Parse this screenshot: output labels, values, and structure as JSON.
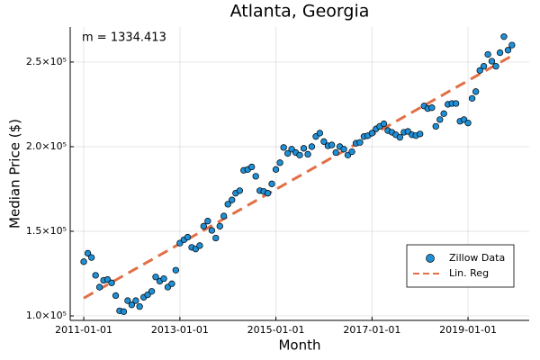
{
  "chart_data": {
    "type": "scatter",
    "title": "Atlanta, Georgia",
    "xlabel": "Month",
    "ylabel": "Median Price ($)",
    "annotation": "m = 1334.413",
    "x": [
      "2011-01-01",
      "2011-02-01",
      "2011-03-01",
      "2011-04-01",
      "2011-05-01",
      "2011-06-01",
      "2011-07-01",
      "2011-08-01",
      "2011-09-01",
      "2011-10-01",
      "2011-11-01",
      "2011-12-01",
      "2012-01-01",
      "2012-02-01",
      "2012-03-01",
      "2012-04-01",
      "2012-05-01",
      "2012-06-01",
      "2012-07-01",
      "2012-08-01",
      "2012-09-01",
      "2012-10-01",
      "2012-11-01",
      "2012-12-01",
      "2013-01-01",
      "2013-02-01",
      "2013-03-01",
      "2013-04-01",
      "2013-05-01",
      "2013-06-01",
      "2013-07-01",
      "2013-08-01",
      "2013-09-01",
      "2013-10-01",
      "2013-11-01",
      "2013-12-01",
      "2014-01-01",
      "2014-02-01",
      "2014-03-01",
      "2014-04-01",
      "2014-05-01",
      "2014-06-01",
      "2014-07-01",
      "2014-08-01",
      "2014-09-01",
      "2014-10-01",
      "2014-11-01",
      "2014-12-01",
      "2015-01-01",
      "2015-02-01",
      "2015-03-01",
      "2015-04-01",
      "2015-05-01",
      "2015-06-01",
      "2015-07-01",
      "2015-08-01",
      "2015-09-01",
      "2015-10-01",
      "2015-11-01",
      "2015-12-01",
      "2016-01-01",
      "2016-02-01",
      "2016-03-01",
      "2016-04-01",
      "2016-05-01",
      "2016-06-01",
      "2016-07-01",
      "2016-08-01",
      "2016-09-01",
      "2016-10-01",
      "2016-11-01",
      "2016-12-01",
      "2017-01-01",
      "2017-02-01",
      "2017-03-01",
      "2017-04-01",
      "2017-05-01",
      "2017-06-01",
      "2017-07-01",
      "2017-08-01",
      "2017-09-01",
      "2017-10-01",
      "2017-11-01",
      "2017-12-01",
      "2018-01-01",
      "2018-02-01",
      "2018-03-01",
      "2018-04-01",
      "2018-05-01",
      "2018-06-01",
      "2018-07-01",
      "2018-08-01",
      "2018-09-01",
      "2018-10-01",
      "2018-11-01",
      "2018-12-01",
      "2019-01-01",
      "2019-02-01",
      "2019-03-01",
      "2019-04-01",
      "2019-05-01",
      "2019-06-01",
      "2019-07-01",
      "2019-08-01",
      "2019-09-01",
      "2019-10-01",
      "2019-11-01",
      "2019-12-01"
    ],
    "series": [
      {
        "name": "Zillow Data",
        "color": "#1f8fd6",
        "values": [
          132000,
          137000,
          134500,
          124000,
          117000,
          121000,
          121500,
          119500,
          112000,
          103000,
          102500,
          109000,
          106500,
          109000,
          105500,
          111000,
          112500,
          114500,
          123000,
          120500,
          122000,
          117000,
          119000,
          127000,
          143000,
          145000,
          146500,
          140500,
          139500,
          141500,
          153000,
          156000,
          150500,
          146000,
          153000,
          159000,
          166000,
          168500,
          172500,
          174000,
          186000,
          186500,
          188000,
          182500,
          174000,
          173500,
          172500,
          178000,
          186500,
          190500,
          199500,
          196000,
          198500,
          196500,
          195000,
          199000,
          195500,
          200000,
          206000,
          208000,
          203000,
          200500,
          201000,
          196500,
          200000,
          198500,
          195000,
          197000,
          202000,
          202500,
          206000,
          206500,
          208000,
          210500,
          212000,
          213500,
          209500,
          208500,
          207000,
          205500,
          208500,
          209000,
          207000,
          206500,
          207500,
          224000,
          222500,
          223000,
          212000,
          216000,
          219500,
          225000,
          225500,
          225500,
          215000,
          216000,
          214000,
          228500,
          232500,
          245000,
          247500,
          254500,
          250500,
          247500,
          255500,
          265000,
          257000,
          260000
        ]
      },
      {
        "name": "Lin. Reg",
        "color": "#e26f46",
        "style": "dashed",
        "x": [
          "2011-01-01",
          "2019-12-01"
        ],
        "values": [
          110500,
          253700
        ]
      }
    ],
    "xlim": [
      "2010-09-20",
      "2020-04-10"
    ],
    "xticks": [
      "2011-01-01",
      "2013-01-01",
      "2015-01-01",
      "2017-01-01",
      "2019-01-01"
    ],
    "ylim": [
      97340,
      270700
    ],
    "yticks": [
      {
        "value": 100000,
        "label": "1.0×10⁵"
      },
      {
        "value": 150000,
        "label": "1.5×10⁵"
      },
      {
        "value": 200000,
        "label": "2.0×10⁵"
      },
      {
        "value": 250000,
        "label": "2.5×10⁵"
      }
    ],
    "grid": true,
    "legend": "bottom-right"
  }
}
